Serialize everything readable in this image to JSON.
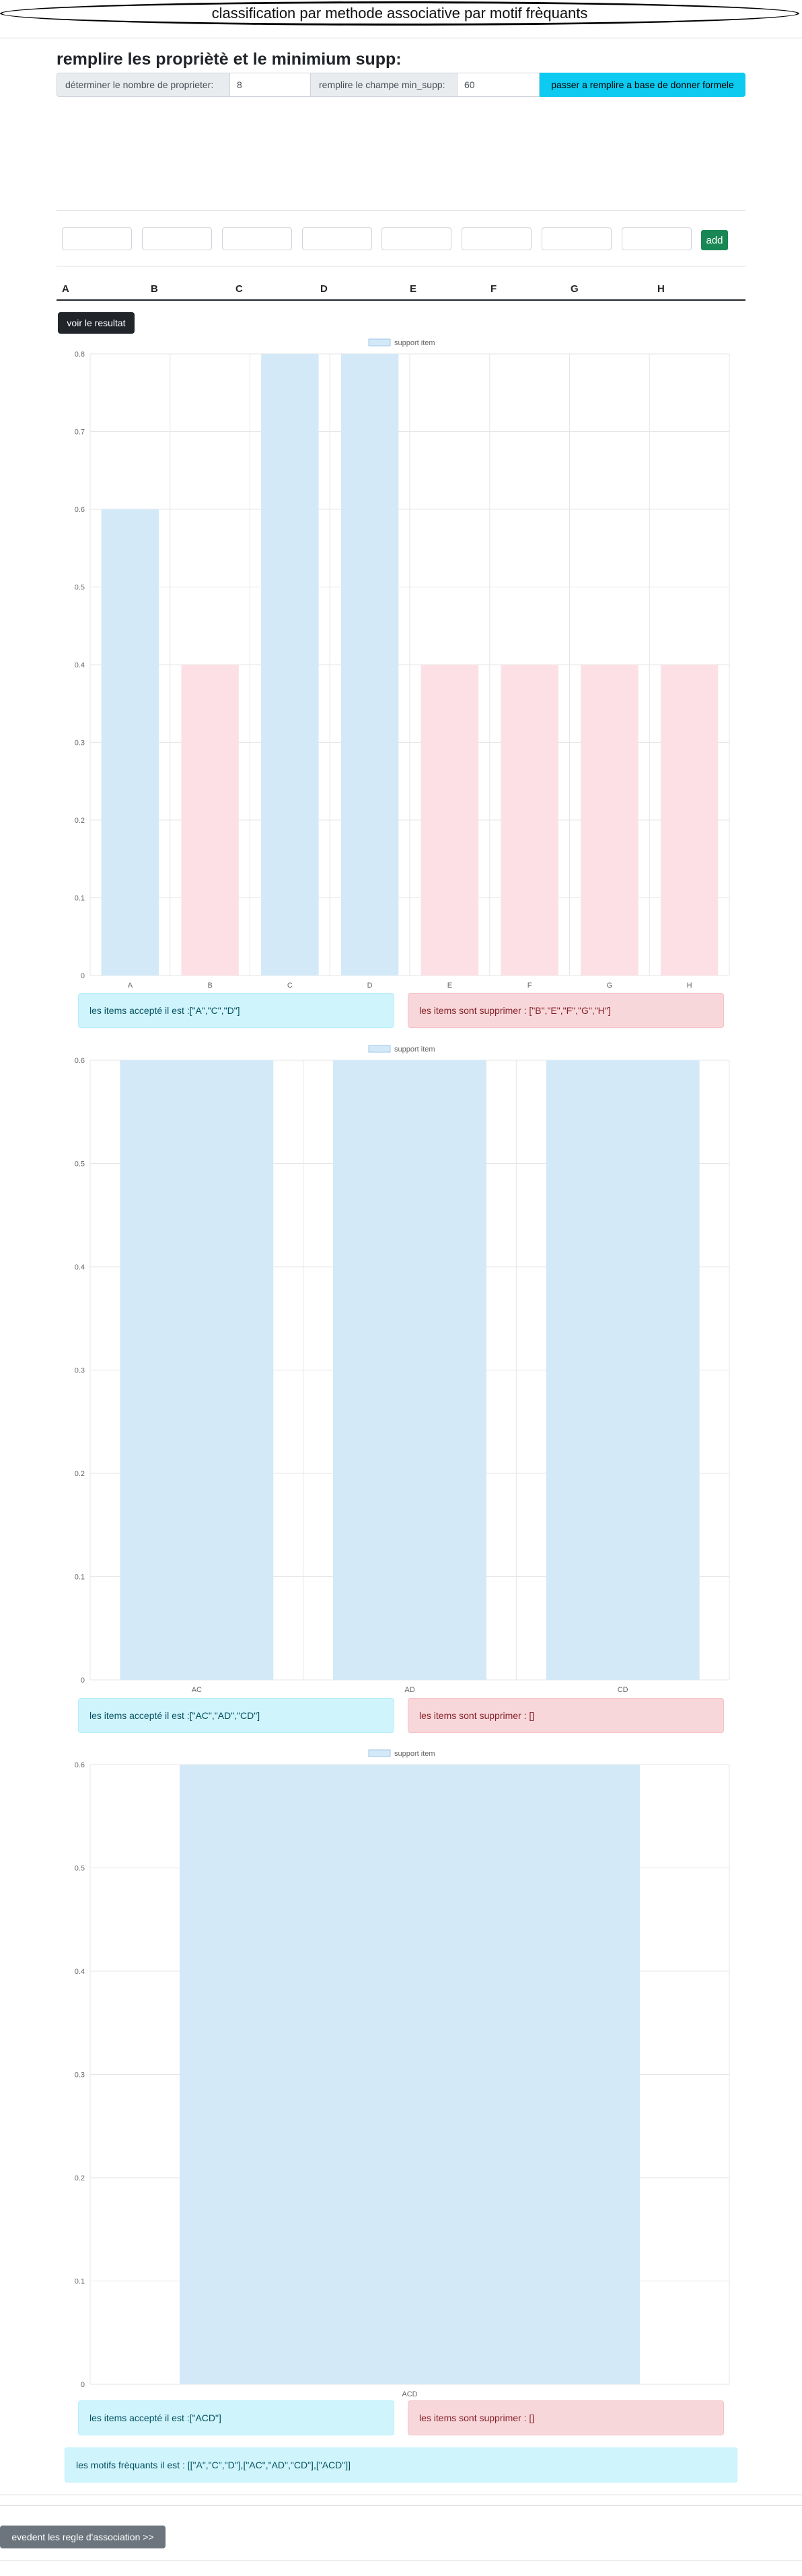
{
  "header": {
    "title": "classification par methode associative par motif frèquants"
  },
  "main": {
    "heading": "remplire les propriètè et le minimium supp:",
    "form": {
      "props_label": "déterminer le nombre de proprieter:",
      "props_value": "8",
      "minsupp_label": "remplire le champe min_supp:",
      "minsupp_value": "60",
      "submit_label": "passer a remplire a base de donner formele"
    },
    "add_label": "add",
    "columns": [
      "A",
      "B",
      "C",
      "D",
      "E",
      "F",
      "G",
      "H"
    ],
    "result_button": "voir le resultat",
    "frequent_text": "les motifs frèquants il est : [[\"A\",\"C\",\"D\"],[\"AC\",\"AD\",\"CD\"],[\"ACD\"]]",
    "rules_button": "evedent les regle d'association >>"
  },
  "colors": {
    "accepted": "#d4e9f8",
    "rejected": "#fde0e6",
    "grid": "#e6e6e6"
  },
  "chart_data": [
    {
      "type": "bar",
      "legend": "support item",
      "categories": [
        "A",
        "B",
        "C",
        "D",
        "E",
        "F",
        "G",
        "H"
      ],
      "values": [
        0.6,
        0.4,
        0.8,
        0.8,
        0.4,
        0.4,
        0.4,
        0.4
      ],
      "accepted": [
        true,
        false,
        true,
        true,
        false,
        false,
        false,
        false
      ],
      "ylim": [
        0,
        0.8
      ],
      "yticks": [
        "0",
        "0.1",
        "0.2",
        "0.3",
        "0.4",
        "0.5",
        "0.6",
        "0.7",
        "0.8"
      ],
      "accepted_text": "les items accepté il est :[\"A\",\"C\",\"D\"]",
      "rejected_text": "les items sont supprimer : [\"B\",\"E\",\"F\",\"G\",\"H\"]"
    },
    {
      "type": "bar",
      "legend": "support item",
      "categories": [
        "AC",
        "AD",
        "CD"
      ],
      "values": [
        0.6,
        0.6,
        0.6
      ],
      "accepted": [
        true,
        true,
        true
      ],
      "ylim": [
        0,
        0.6
      ],
      "yticks": [
        "0",
        "0.1",
        "0.2",
        "0.3",
        "0.4",
        "0.5",
        "0.6"
      ],
      "accepted_text": "les items accepté il est :[\"AC\",\"AD\",\"CD\"]",
      "rejected_text": "les items sont supprimer : []"
    },
    {
      "type": "bar",
      "legend": "support item",
      "categories": [
        "ACD"
      ],
      "values": [
        0.6
      ],
      "accepted": [
        true
      ],
      "ylim": [
        0,
        0.6
      ],
      "yticks": [
        "0",
        "0.1",
        "0.2",
        "0.3",
        "0.4",
        "0.5",
        "0.6"
      ],
      "accepted_text": "les items accepté il est :[\"ACD\"]",
      "rejected_text": "les items sont supprimer : []"
    }
  ]
}
